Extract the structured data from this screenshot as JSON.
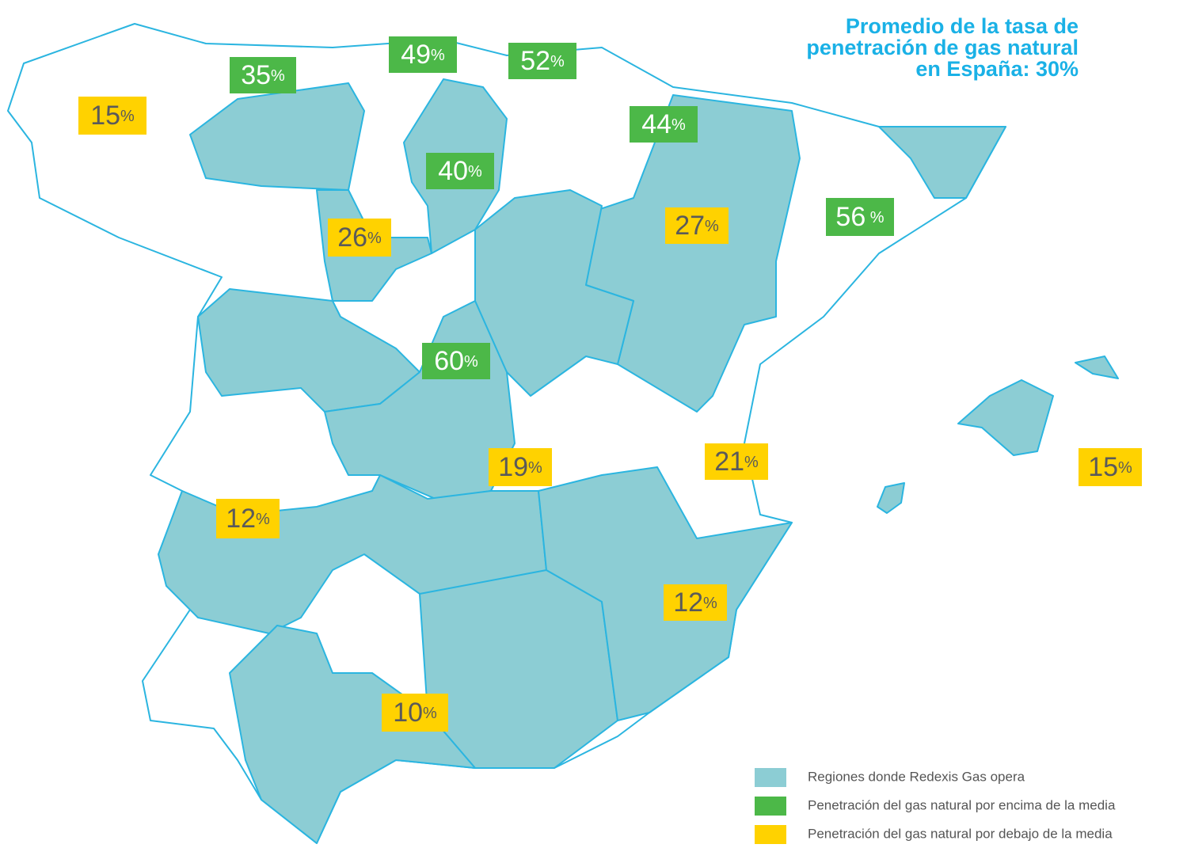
{
  "title": [
    "Promedio de la tasa de",
    "penetración de gas natural",
    "en España: 30%"
  ],
  "labels": [
    {
      "value": 15,
      "unit": "%",
      "color": "#ffd200",
      "text_color": "#5a5a5a"
    },
    {
      "value": 35,
      "unit": "%",
      "color": "#4cb848",
      "text_color": "#ffffff"
    },
    {
      "value": 49,
      "unit": "%",
      "color": "#4cb848",
      "text_color": "#ffffff"
    },
    {
      "value": 52,
      "unit": "%",
      "color": "#4cb848",
      "text_color": "#ffffff"
    },
    {
      "value": 44,
      "unit": "%",
      "color": "#4cb848",
      "text_color": "#ffffff"
    },
    {
      "value": 40,
      "unit": "%",
      "color": "#4cb848",
      "text_color": "#ffffff"
    },
    {
      "value": 56,
      "unit": " %",
      "color": "#4cb848",
      "text_color": "#ffffff"
    },
    {
      "value": 27,
      "unit": "%",
      "color": "#ffd200",
      "text_color": "#5a5a5a"
    },
    {
      "value": 26,
      "unit": "%",
      "color": "#ffd200",
      "text_color": "#5a5a5a"
    },
    {
      "value": 60,
      "unit": "%",
      "color": "#4cb848",
      "text_color": "#ffffff"
    },
    {
      "value": 19,
      "unit": "%",
      "color": "#ffd200",
      "text_color": "#5a5a5a"
    },
    {
      "value": 21,
      "unit": "%",
      "color": "#ffd200",
      "text_color": "#5a5a5a"
    },
    {
      "value": 15,
      "unit": "%",
      "color": "#ffd200",
      "text_color": "#5a5a5a"
    },
    {
      "value": 12,
      "unit": "%",
      "color": "#ffd200",
      "text_color": "#5a5a5a"
    },
    {
      "value": 12,
      "unit": "%",
      "color": "#ffd200",
      "text_color": "#5a5a5a"
    },
    {
      "value": 10,
      "unit": "%",
      "color": "#ffd200",
      "text_color": "#5a5a5a"
    }
  ],
  "legend": [
    {
      "text": "Regiones donde Redexis Gas opera",
      "color": "#8ccdd4"
    },
    {
      "text": "Penetración del gas natural por encima de la media",
      "color": "#4cb848"
    },
    {
      "text": "Penetración del gas natural por debajo de la media",
      "color": "#ffd200"
    }
  ]
}
